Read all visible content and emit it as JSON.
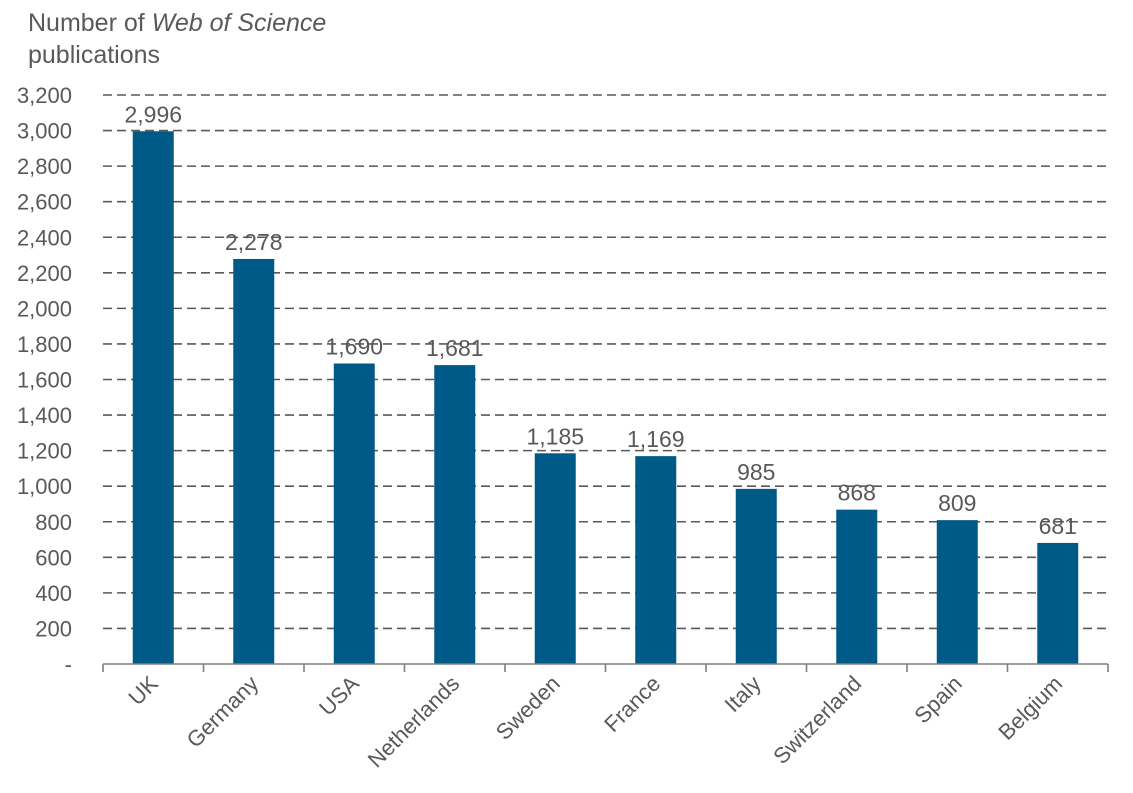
{
  "chart_data": {
    "type": "bar",
    "title": "",
    "ylabel_parts": [
      "Number of ",
      "Web of Science",
      "publications"
    ],
    "xlabel": "",
    "categories": [
      "UK",
      "Germany",
      "USA",
      "Netherlands",
      "Sweden",
      "France",
      "Italy",
      "Switzerland",
      "Spain",
      "Belgium"
    ],
    "values": [
      2996,
      2278,
      1690,
      1681,
      1185,
      1169,
      985,
      868,
      809,
      681
    ],
    "data_labels": [
      "2,996",
      "2,278",
      "1,690",
      "1,681",
      "1,185",
      "1,169",
      "985",
      "868",
      "809",
      "681"
    ],
    "ylim": [
      0,
      3200
    ],
    "yticks": [
      0,
      200,
      400,
      600,
      800,
      1000,
      1200,
      1400,
      1600,
      1800,
      2000,
      2200,
      2400,
      2600,
      2800,
      3000,
      3200
    ],
    "ytick_labels": [
      "-",
      "200",
      "400",
      "600",
      "800",
      "1,000",
      "1,200",
      "1,400",
      "1,600",
      "1,800",
      "2,000",
      "2,200",
      "2,400",
      "2,600",
      "2,800",
      "3,000",
      "3,200"
    ],
    "grid": true,
    "legend": "none",
    "bar_color": "#005a87"
  }
}
